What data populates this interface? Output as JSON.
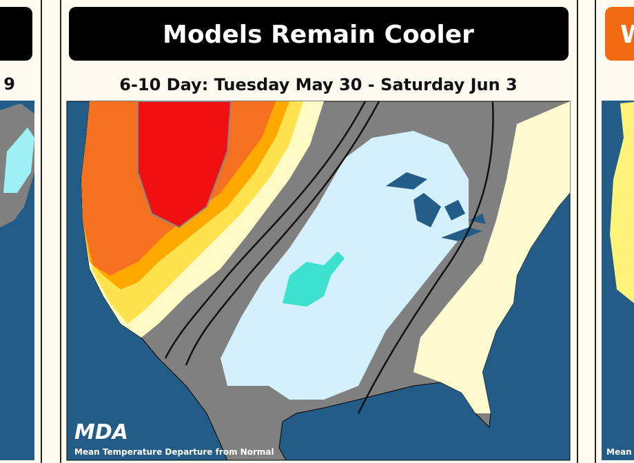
{
  "panels": [
    {
      "subtitle_fragment": "9"
    },
    {
      "title": "Models Remain Cooler",
      "subtitle": "6-10 Day: Tuesday May 30 - Saturday Jun 3",
      "logo": "MDA",
      "caption": "Mean Temperature Departure from Normal"
    },
    {
      "title_fragment": "W",
      "caption_fragment": "Mean"
    }
  ]
}
